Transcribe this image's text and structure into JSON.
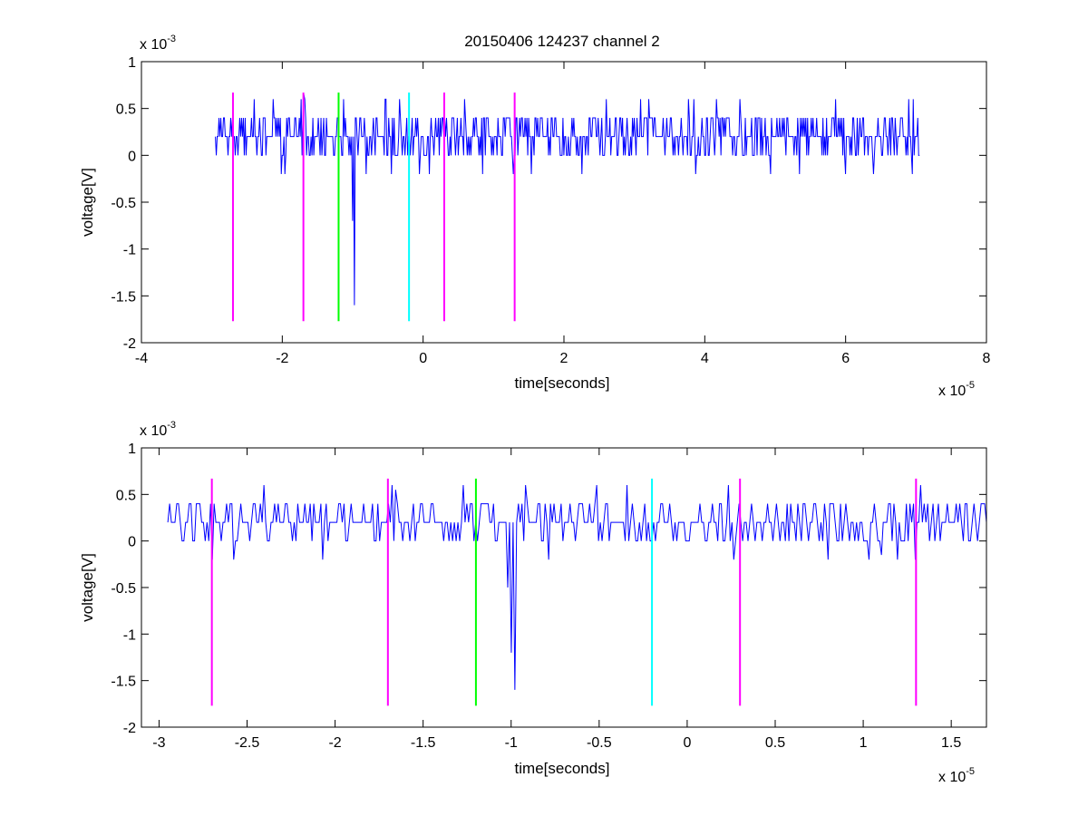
{
  "chart_data": [
    {
      "type": "line",
      "title": "20150406 124237 channel 2",
      "xlabel": "time[seconds]",
      "ylabel": "voltage[V]",
      "x_multiplier_label": "x 10",
      "x_multiplier_exp": "-5",
      "y_multiplier_label": "x 10",
      "y_multiplier_exp": "-3",
      "xlim": [
        -4,
        8
      ],
      "ylim": [
        -2,
        1
      ],
      "xticks": [
        -4,
        -2,
        0,
        2,
        4,
        6,
        8
      ],
      "xtick_labels": [
        "-4",
        "-2",
        "0",
        "2",
        "4",
        "6",
        "8"
      ],
      "yticks": [
        -2,
        -1.5,
        -1,
        -0.5,
        0,
        0.5,
        1
      ],
      "ytick_labels": [
        "-2",
        "-1.5",
        "-1",
        "-0.5",
        "0",
        "0.5",
        "1"
      ],
      "grid": false,
      "signal": {
        "color": "#0000ff",
        "x_start": -2.95,
        "x_end": 7.05,
        "baseline": 0.2,
        "levels": [
          0,
          0.2,
          0.4
        ],
        "spikes": [
          {
            "x": -0.97,
            "y": -1.6
          },
          {
            "x": -1.0,
            "y": -0.7
          },
          {
            "x": -1.7,
            "y": 0.65
          },
          {
            "x": -1.68,
            "y": 0.6
          },
          {
            "x": -2.4,
            "y": 0.6
          },
          {
            "x": 3.2,
            "y": 0.6
          },
          {
            "x": 2.6,
            "y": 0.6
          },
          {
            "x": 4.5,
            "y": 0.6
          },
          {
            "x": 6.9,
            "y": 0.6
          },
          {
            "x": 6.0,
            "y": -0.2
          },
          {
            "x": 6.4,
            "y": -0.2
          },
          {
            "x": 0.85,
            "y": -0.2
          }
        ]
      },
      "markers": [
        {
          "x": -2.7,
          "y_low": -1.77,
          "y_high": 0.67,
          "color": "#ff00ff"
        },
        {
          "x": -1.7,
          "y_low": -1.77,
          "y_high": 0.67,
          "color": "#ff00ff"
        },
        {
          "x": -1.2,
          "y_low": -1.77,
          "y_high": 0.67,
          "color": "#00ff00"
        },
        {
          "x": -0.2,
          "y_low": -1.77,
          "y_high": 0.67,
          "color": "#00ffff"
        },
        {
          "x": 0.3,
          "y_low": -1.77,
          "y_high": 0.67,
          "color": "#ff00ff"
        },
        {
          "x": 1.3,
          "y_low": -1.77,
          "y_high": 0.67,
          "color": "#ff00ff"
        }
      ]
    },
    {
      "type": "line",
      "title": "",
      "xlabel": "time[seconds]",
      "ylabel": "voltage[V]",
      "x_multiplier_label": "x 10",
      "x_multiplier_exp": "-5",
      "y_multiplier_label": "x 10",
      "y_multiplier_exp": "-3",
      "xlim": [
        -3.1,
        1.7
      ],
      "ylim": [
        -2,
        1
      ],
      "xticks": [
        -3,
        -2.5,
        -2,
        -1.5,
        -1,
        -0.5,
        0,
        0.5,
        1,
        1.5
      ],
      "xtick_labels": [
        "-3",
        "-2.5",
        "-2",
        "-1.5",
        "-1",
        "-0.5",
        "0",
        "0.5",
        "1",
        "1.5"
      ],
      "yticks": [
        -2,
        -1.5,
        -1,
        -0.5,
        0,
        0.5,
        1
      ],
      "ytick_labels": [
        "-2",
        "-1.5",
        "-1",
        "-0.5",
        "0",
        "0.5",
        "1"
      ],
      "grid": false,
      "signal": {
        "color": "#0000ff",
        "x_start": -2.95,
        "x_end": 1.7,
        "baseline": 0.2,
        "levels": [
          0,
          0.2,
          0.4
        ],
        "spikes": [
          {
            "x": -0.98,
            "y": -1.6
          },
          {
            "x": -1.0,
            "y": -1.2
          },
          {
            "x": -1.02,
            "y": -0.5
          },
          {
            "x": -2.7,
            "y": -0.2
          },
          {
            "x": -2.4,
            "y": 0.6
          },
          {
            "x": -1.68,
            "y": 0.6
          },
          {
            "x": -1.66,
            "y": 0.55
          },
          {
            "x": 0.23,
            "y": 0.6
          },
          {
            "x": 1.33,
            "y": 0.6
          },
          {
            "x": -2.07,
            "y": -0.2
          },
          {
            "x": 0.8,
            "y": -0.2
          },
          {
            "x": 1.1,
            "y": -0.15
          }
        ]
      },
      "markers": [
        {
          "x": -2.7,
          "y_low": -1.77,
          "y_high": 0.67,
          "color": "#ff00ff"
        },
        {
          "x": -1.7,
          "y_low": -1.77,
          "y_high": 0.67,
          "color": "#ff00ff"
        },
        {
          "x": -1.2,
          "y_low": -1.77,
          "y_high": 0.67,
          "color": "#00ff00"
        },
        {
          "x": -0.2,
          "y_low": -1.77,
          "y_high": 0.67,
          "color": "#00ffff"
        },
        {
          "x": 0.3,
          "y_low": -1.77,
          "y_high": 0.67,
          "color": "#ff00ff"
        },
        {
          "x": 1.3,
          "y_low": -1.77,
          "y_high": 0.67,
          "color": "#ff00ff"
        }
      ]
    }
  ]
}
